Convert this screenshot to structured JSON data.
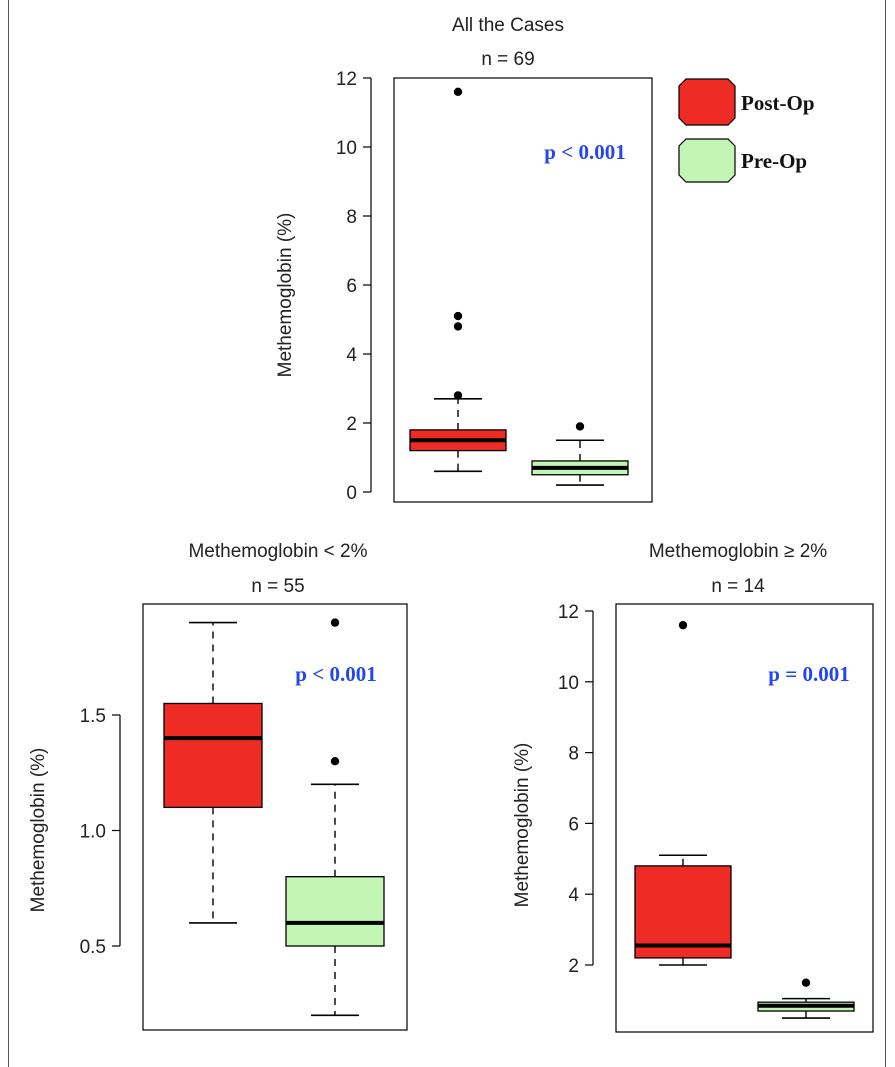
{
  "colors": {
    "post_op": "#ee2b24",
    "pre_op": "#c3f5b5",
    "pvalue": "#2346f0",
    "outline": "#000000"
  },
  "legend": {
    "items": [
      {
        "label": "Post-Op",
        "color": "#ee2b24"
      },
      {
        "label": "Pre-Op",
        "color": "#c3f5b5"
      }
    ]
  },
  "chart_data": [
    {
      "type": "boxplot",
      "title": "All the Cases",
      "subtitle": "n = 69",
      "ylabel": "Methemoglobin (%)",
      "ylim": [
        0,
        12
      ],
      "yticks": [
        0,
        2,
        4,
        6,
        8,
        10,
        12
      ],
      "tick_labels": [
        "0",
        "2",
        "4",
        "6",
        "8",
        "10",
        "12"
      ],
      "annotation": "p < 0.001",
      "boxes": [
        {
          "group": "Post-Op",
          "whisker_low": 0.6,
          "q1": 1.2,
          "median": 1.5,
          "q3": 1.8,
          "whisker_high": 2.7,
          "outliers": [
            2.8,
            4.8,
            5.1,
            11.6
          ]
        },
        {
          "group": "Pre-Op",
          "whisker_low": 0.2,
          "q1": 0.5,
          "median": 0.7,
          "q3": 0.9,
          "whisker_high": 1.5,
          "outliers": [
            1.9
          ]
        }
      ]
    },
    {
      "type": "boxplot",
      "title": "Methemoglobin < 2%",
      "subtitle": "n = 55",
      "ylabel": "Methemoglobin (%)",
      "ylim": [
        0.2,
        1.9
      ],
      "yticks": [
        0.5,
        1.0,
        1.5
      ],
      "tick_labels": [
        "0.5",
        "1.0",
        "1.5"
      ],
      "annotation": "p < 0.001",
      "boxes": [
        {
          "group": "Post-Op",
          "whisker_low": 0.6,
          "q1": 1.1,
          "median": 1.4,
          "q3": 1.55,
          "whisker_high": 1.9,
          "outliers": []
        },
        {
          "group": "Pre-Op",
          "whisker_low": 0.2,
          "q1": 0.5,
          "median": 0.6,
          "q3": 0.8,
          "whisker_high": 1.2,
          "outliers": [
            1.3,
            1.9
          ]
        }
      ]
    },
    {
      "type": "boxplot",
      "title": "Methemoglobin  ≥ 2%",
      "subtitle": "n = 14",
      "ylabel": "Methemoglobin (%)",
      "ylim": [
        0.5,
        12
      ],
      "yticks": [
        2,
        4,
        6,
        8,
        10,
        12
      ],
      "tick_labels": [
        "2",
        "4",
        "6",
        "8",
        "10",
        "12"
      ],
      "annotation": "p = 0.001",
      "boxes": [
        {
          "group": "Post-Op",
          "whisker_low": 2.0,
          "q1": 2.2,
          "median": 2.55,
          "q3": 4.8,
          "whisker_high": 5.1,
          "outliers": [
            11.6
          ]
        },
        {
          "group": "Pre-Op",
          "whisker_low": 0.5,
          "q1": 0.7,
          "median": 0.85,
          "q3": 0.95,
          "whisker_high": 1.05,
          "outliers": [
            1.5
          ]
        }
      ]
    }
  ]
}
